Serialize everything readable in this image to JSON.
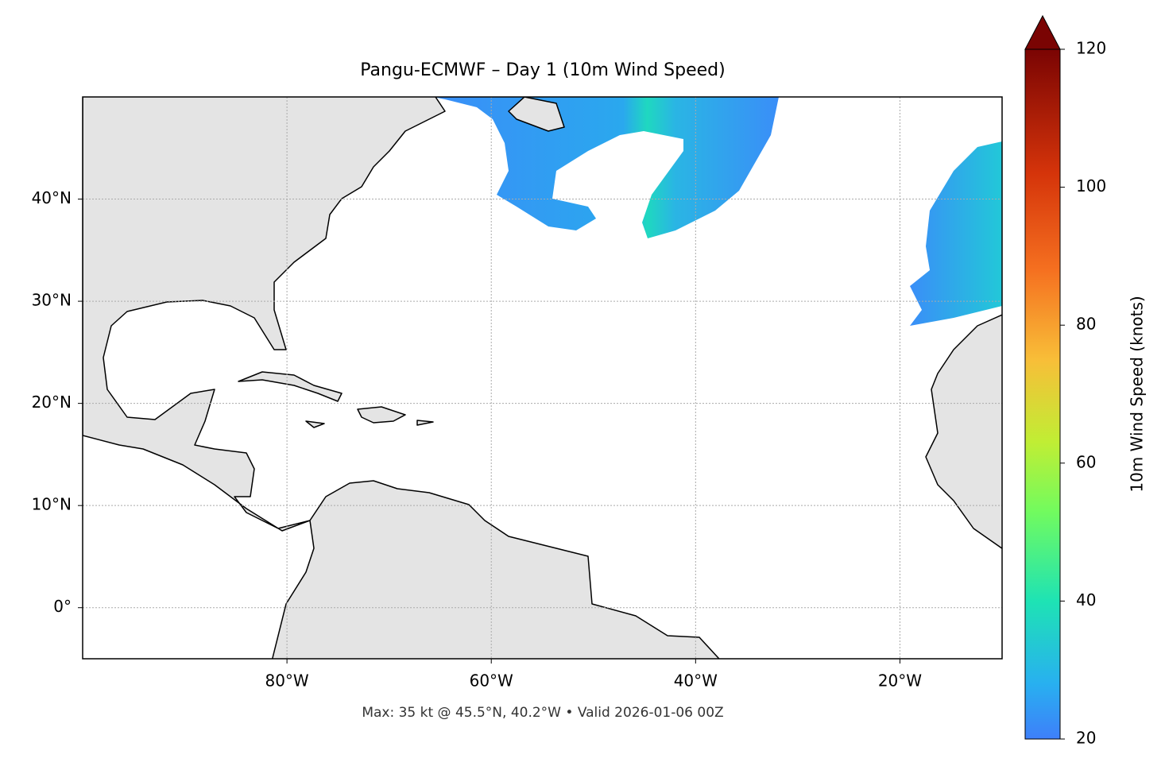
{
  "chart_data": {
    "type": "map",
    "title": "Pangu-ECMWF – Day 1 (10m Wind Speed)",
    "footer": "Max: 35 kt @ 45.5°N, 40.2°W • Valid 2026-01-06 00Z",
    "xlim": [
      -100,
      -10
    ],
    "ylim": [
      -5,
      50
    ],
    "xticks": [
      {
        "value": -80,
        "label": "80°W"
      },
      {
        "value": -60,
        "label": "60°W"
      },
      {
        "value": -40,
        "label": "40°W"
      },
      {
        "value": -20,
        "label": "20°W"
      }
    ],
    "yticks": [
      {
        "value": 0,
        "label": "0°"
      },
      {
        "value": 10,
        "label": "10°N"
      },
      {
        "value": 20,
        "label": "20°N"
      },
      {
        "value": 30,
        "label": "30°N"
      },
      {
        "value": 40,
        "label": "40°N"
      }
    ],
    "grid": true,
    "colorbar": {
      "label": "10m Wind Speed (knots)",
      "lim": [
        20,
        120
      ],
      "ticks": [
        20,
        40,
        60,
        80,
        100,
        120
      ]
    }
  }
}
